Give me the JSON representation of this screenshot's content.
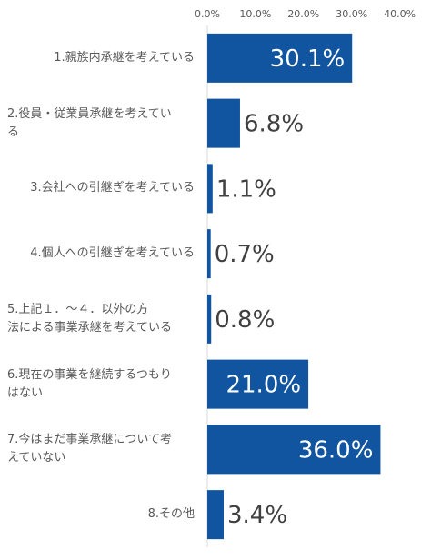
{
  "chart_data": {
    "type": "bar",
    "orientation": "horizontal",
    "categories": [
      "1.親族内承継を考えている",
      "2.役員・従業員承継を考えている",
      "3.会社への引継ぎを考えている",
      "4.個人への引継ぎを考えている",
      "5.上記１．～４．以外の方法による事業承継を考えている",
      "6.現在の事業を継続するつもりはない",
      "7.今はまだ事業承継について考えていない",
      "8.その他"
    ],
    "category_lines": [
      [
        "1.親族内承継を考えている"
      ],
      [
        "2.役員・従業員承継を考えてい",
        "る"
      ],
      [
        "3.会社への引継ぎを考えている"
      ],
      [
        "4.個人への引継ぎを考えている"
      ],
      [
        "5.上記１．～４．以外の方",
        "法による事業承継を考えている"
      ],
      [
        "6.現在の事業を継続するつもり",
        "はない"
      ],
      [
        "7.今はまだ事業承継について考",
        "えていない"
      ],
      [
        "8.その他"
      ]
    ],
    "values": [
      30.1,
      6.8,
      1.1,
      0.7,
      0.8,
      21.0,
      36.0,
      3.4
    ],
    "data_labels": [
      "30.1%",
      "6.8%",
      "1.1%",
      "0.7%",
      "0.8%",
      "21.0%",
      "36.0%",
      "3.4%"
    ],
    "xlim": [
      0,
      40
    ],
    "x_ticks": [
      "0.0%",
      "10.0%",
      "20.0%",
      "30.0%",
      "40.0%"
    ],
    "x_tick_values": [
      0,
      10,
      20,
      30,
      40
    ],
    "axis_position": "top",
    "grid": false,
    "legend": "none",
    "colors": {
      "bar": "#1155a0",
      "label_inside": "#ffffff",
      "label_outside": "#404040",
      "axis": "#d9d9d9",
      "tick": "#595959"
    }
  }
}
